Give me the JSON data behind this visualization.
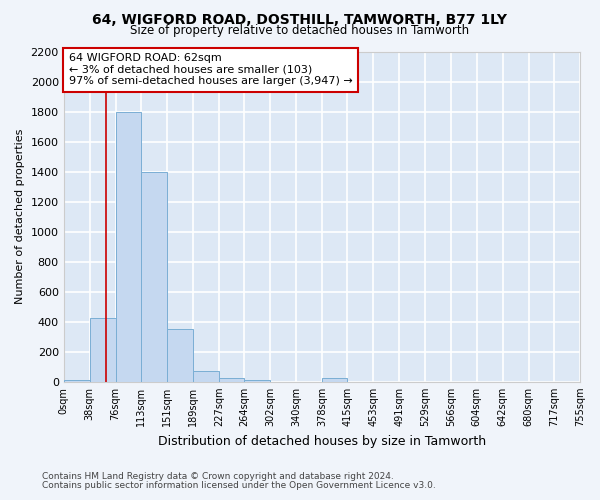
{
  "title1": "64, WIGFORD ROAD, DOSTHILL, TAMWORTH, B77 1LY",
  "title2": "Size of property relative to detached houses in Tamworth",
  "xlabel": "Distribution of detached houses by size in Tamworth",
  "ylabel": "Number of detached properties",
  "footnote1": "Contains HM Land Registry data © Crown copyright and database right 2024.",
  "footnote2": "Contains public sector information licensed under the Open Government Licence v3.0.",
  "bin_edges": [
    0,
    38,
    76,
    113,
    151,
    189,
    227,
    264,
    302,
    340,
    378,
    415,
    453,
    491,
    529,
    566,
    604,
    642,
    680,
    717,
    755
  ],
  "bar_heights": [
    15,
    425,
    1800,
    1400,
    350,
    75,
    25,
    15,
    0,
    0,
    25,
    0,
    0,
    0,
    0,
    0,
    0,
    0,
    0,
    0
  ],
  "bar_color": "#c5d8f0",
  "bar_edge_color": "#7aaed4",
  "property_line_x": 62,
  "property_line_color": "#cc0000",
  "annotation_title": "64 WIGFORD ROAD: 62sqm",
  "annotation_line1": "← 3% of detached houses are smaller (103)",
  "annotation_line2": "97% of semi-detached houses are larger (3,947) →",
  "annotation_box_color": "#cc0000",
  "ylim": [
    0,
    2200
  ],
  "yticks": [
    0,
    200,
    400,
    600,
    800,
    1000,
    1200,
    1400,
    1600,
    1800,
    2000,
    2200
  ],
  "bg_color": "#f0f4fa",
  "plot_bg_color": "#dde8f5",
  "grid_color": "#ffffff"
}
